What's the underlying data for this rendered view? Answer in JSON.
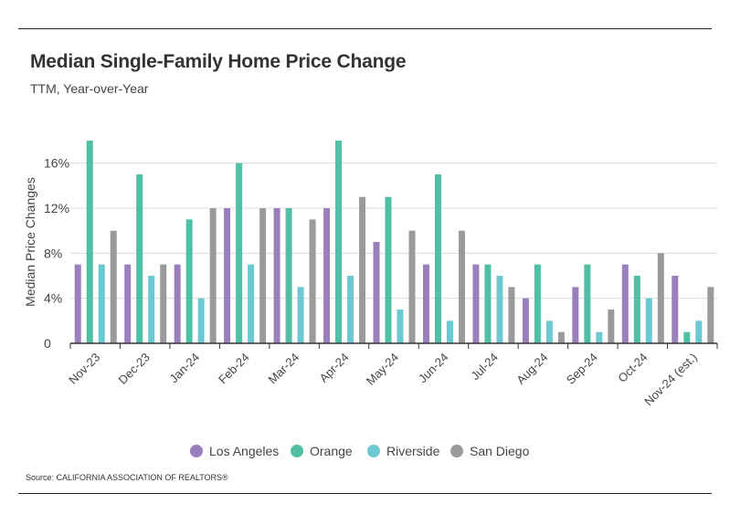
{
  "header": {
    "title": "Median Single-Family Home Price Change",
    "subtitle": "TTM, Year-over-Year"
  },
  "footer": {
    "source": "Source:  CALIFORNIA ASSOCIATION OF REALTORS®"
  },
  "chart_data": {
    "type": "bar",
    "title": "Median Single-Family Home Price Change",
    "subtitle": "TTM, Year-over-Year",
    "xlabel": "",
    "ylabel": "Median Price Changes",
    "ylim": [
      0,
      18
    ],
    "yticks": [
      0,
      4,
      8,
      12,
      16
    ],
    "ytick_labels": [
      "0",
      "4%",
      "8%",
      "12%",
      "16%"
    ],
    "grid": true,
    "legend_position": "bottom",
    "categories": [
      "Nov-23",
      "Dec-23",
      "Jan-24",
      "Feb-24",
      "Mar-24",
      "Apr-24",
      "May-24",
      "Jun-24",
      "Jul-24",
      "Aug-24",
      "Sep-24",
      "Oct-24",
      "Nov-24 (est.)"
    ],
    "series": [
      {
        "name": "Los Angeles",
        "color": "#9b7fbd",
        "values": [
          7,
          7,
          7,
          12,
          12,
          12,
          9,
          7,
          7,
          4,
          5,
          7,
          6
        ]
      },
      {
        "name": "Orange",
        "color": "#4fbfa5",
        "values": [
          18,
          15,
          11,
          16,
          12,
          18,
          13,
          15,
          7,
          7,
          7,
          6,
          1
        ]
      },
      {
        "name": "Riverside",
        "color": "#6cc8d3",
        "values": [
          7,
          6,
          4,
          7,
          5,
          6,
          3,
          2,
          6,
          2,
          1,
          4,
          2
        ]
      },
      {
        "name": "San Diego",
        "color": "#9a9a9a",
        "values": [
          10,
          7,
          12,
          12,
          11,
          13,
          10,
          10,
          5,
          1,
          3,
          8,
          5
        ]
      }
    ]
  }
}
